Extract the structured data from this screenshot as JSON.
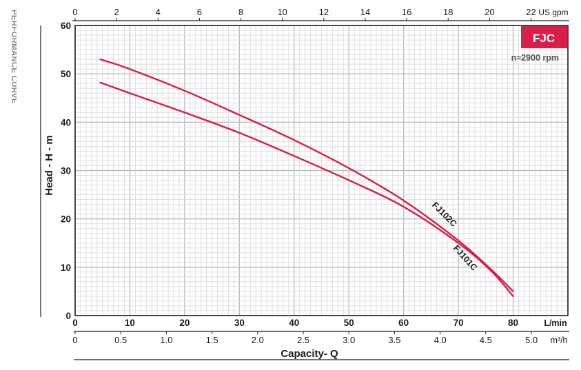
{
  "side_title": "PERFORMANCE CURVE",
  "badge": "FJC",
  "speed_label": "n≈2900 rpm",
  "colors": {
    "curve": "#d81e4a",
    "badge_bg": "#d81e4a",
    "badge_text": "#ffffff",
    "grid_major": "#bdbdbd",
    "grid_minor": "#dcdcdc",
    "axis": "#1a1a1a",
    "side_title": "#888888"
  },
  "chart_data": {
    "type": "line",
    "title": "",
    "ylabel": "Head - H - m",
    "xlabel": "Capacity- Q",
    "ylim": [
      0,
      60
    ],
    "xlim": [
      0,
      90
    ],
    "grid": true,
    "y_ticks": [
      "0",
      "10",
      "20",
      "30",
      "40",
      "50",
      "60"
    ],
    "x_ticks_lmin": [
      "0",
      "10",
      "20",
      "30",
      "40",
      "50",
      "60",
      "70",
      "80"
    ],
    "x_unit_lmin": "L/min",
    "x_ticks_m3h": [
      "0",
      "0.5",
      "1.0",
      "1.5",
      "2.0",
      "2.5",
      "3.0",
      "3.5",
      "4.0",
      "4.5",
      "5.0"
    ],
    "x_unit_m3h": "m³/h",
    "x_ticks_usgpm": [
      "0",
      "2",
      "4",
      "6",
      "8",
      "10",
      "12",
      "14",
      "16",
      "18",
      "20",
      "22"
    ],
    "x_unit_usgpm": "US gpm",
    "series": [
      {
        "name": "FJ102C",
        "x": [
          4.6,
          10,
          20,
          30,
          40,
          50,
          60,
          70,
          76,
          80
        ],
        "y": [
          53,
          51,
          46.5,
          41.5,
          36.3,
          30.5,
          23.8,
          15.5,
          9.5,
          5
        ]
      },
      {
        "name": "FJ101C",
        "x": [
          4.6,
          10,
          20,
          30,
          40,
          50,
          60,
          70,
          76,
          80
        ],
        "y": [
          48.2,
          46,
          42,
          37.8,
          33,
          28,
          22.5,
          15,
          9.2,
          4
        ]
      }
    ]
  }
}
